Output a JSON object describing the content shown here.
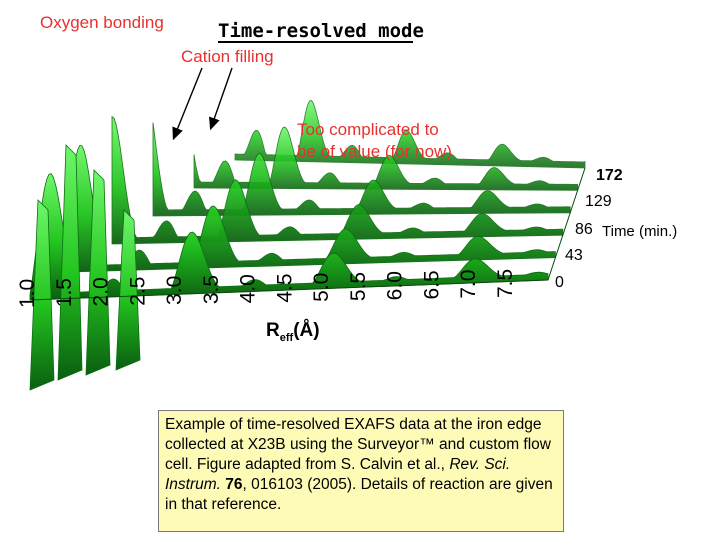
{
  "title": "Time-resolved mode",
  "annotations": {
    "oxygen": "Oxygen bonding",
    "cation": "Cation filling",
    "complicated_line1": "Too complicated to",
    "complicated_line2": "be of value (for now)"
  },
  "axis": {
    "r_label_main": "R",
    "r_label_sub": "eff",
    "r_label_unit": "(Å)",
    "time_label": "Time (min.)"
  },
  "caption": {
    "part1": "Example of time-resolved EXAFS data at the iron edge collected at X23B using the Surveyor™ and custom flow cell. Figure adapted from S. Calvin et al., ",
    "journal": "Rev. Sci. Instrum.",
    "part2": " ",
    "volume": "76",
    "part3": ", 016103 (2005). Details of reaction are given in that reference."
  },
  "colors": {
    "surface": "#22c41f",
    "surface_dark": "#0e6d12",
    "surface_light": "#5ef05a",
    "annotation": "#e8312f",
    "caption_bg": "#fdfbb6"
  },
  "chart_data": {
    "type": "area",
    "style": "3d-surface",
    "x_axis": {
      "label": "Reff(Å)",
      "tick_labels": [
        "1.0",
        "1.5",
        "2.0",
        "2.5",
        "3.0",
        "3.5",
        "4.0",
        "4.5",
        "5.0",
        "5.5",
        "6.0",
        "6.5",
        "7.0",
        "7.5"
      ]
    },
    "y_axis": {
      "label": "Time (min.)",
      "tick_labels": [
        "0",
        "43",
        "86",
        "129",
        "172"
      ],
      "range": [
        0,
        172
      ]
    },
    "grid": false
  }
}
